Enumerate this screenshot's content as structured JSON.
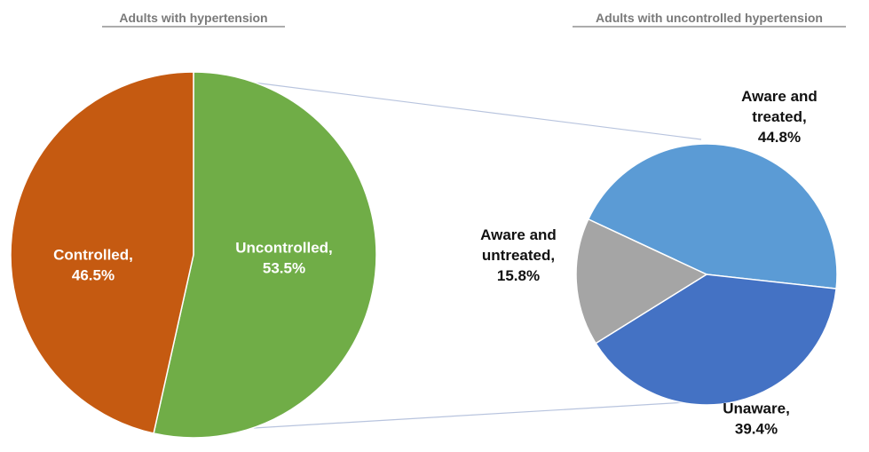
{
  "chart_data": [
    {
      "type": "pie",
      "title": "Adults with hypertension",
      "slices": [
        {
          "name": "Uncontrolled",
          "value": 53.5,
          "label_lines": [
            "Uncontrolled,",
            "53.5%"
          ],
          "color": "#70ad47"
        },
        {
          "name": "Controlled",
          "value": 46.5,
          "label_lines": [
            "Controlled,",
            "46.5%"
          ],
          "color": "#c55a11"
        }
      ]
    },
    {
      "type": "pie",
      "title": "Adults with uncontrolled hypertension",
      "slices": [
        {
          "name": "Aware and treated",
          "value": 44.8,
          "label_lines": [
            "Aware and",
            "treated,",
            "44.8%"
          ],
          "color": "#5b9bd5"
        },
        {
          "name": "Unaware",
          "value": 39.4,
          "label_lines": [
            "Unaware,",
            "39.4%"
          ],
          "color": "#4472c4"
        },
        {
          "name": "Aware and untreated",
          "value": 15.8,
          "label_lines": [
            "Aware and",
            "untreated,",
            "15.8%"
          ],
          "color": "#a5a5a5"
        }
      ]
    }
  ]
}
